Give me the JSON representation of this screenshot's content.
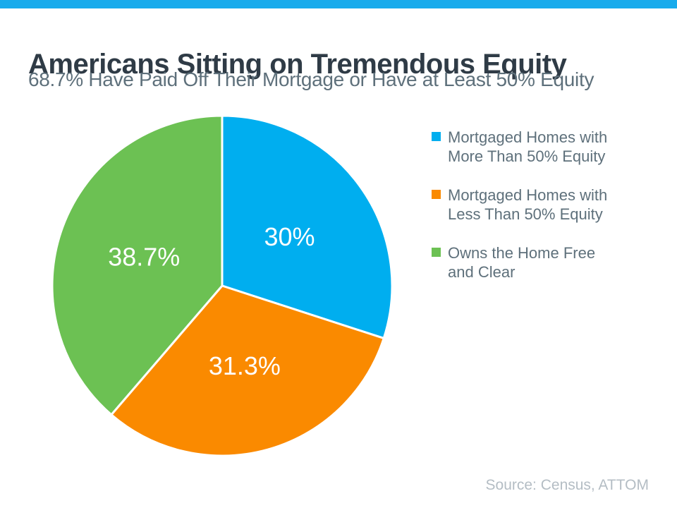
{
  "colors": {
    "background": "#FFFFFF",
    "top-bar": "#18ABEC",
    "title-text": "#2F3B46",
    "subtitle-text": "#5E707B",
    "legend-text": "#5E707B",
    "source-text": "#B4BDC4",
    "label-text": "#FFFFFF"
  },
  "chart_data": {
    "type": "pie",
    "title": "Americans Sitting on Tremendous Equity",
    "subtitle": "68.7% Have Paid Off Their Mortgage or Have at Least 50% Equity",
    "source": "Source: Census, ATTOM",
    "start_angle_deg": 0,
    "direction": "clockwise",
    "legend_position": "right",
    "data_label_color": "#FFFFFF",
    "data_label_radius_fraction": 0.49,
    "slices": [
      {
        "label": "Mortgaged Homes with More Than 50% Equity",
        "legend_lines": [
          "Mortgaged Homes with",
          "More Than 50% Equity"
        ],
        "value": 30,
        "data_label": "30%",
        "color": "#00AEEF"
      },
      {
        "label": "Mortgaged Homes with Less Than 50% Equity",
        "legend_lines": [
          "Mortgaged Homes with",
          "Less Than 50% Equity"
        ],
        "value": 31.3,
        "data_label": "31.3%",
        "color": "#FA8A00"
      },
      {
        "label": "Owns the Home Free and Clear",
        "legend_lines": [
          "Owns the Home Free",
          "and Clear"
        ],
        "value": 38.7,
        "data_label": "38.7%",
        "color": "#6CC153"
      }
    ]
  }
}
